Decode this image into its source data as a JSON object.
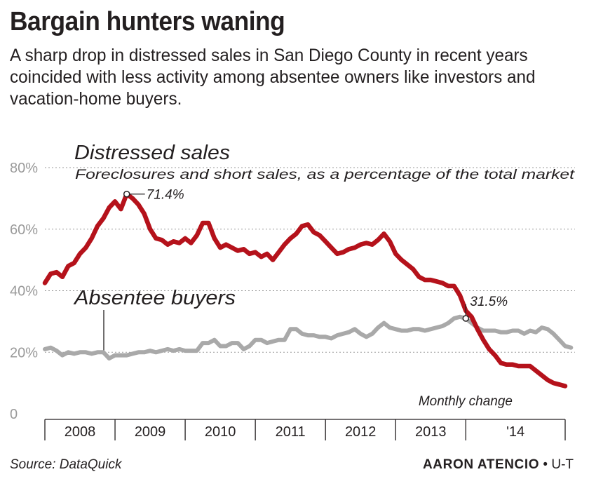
{
  "header": {
    "title": "Bargain hunters waning",
    "subtitle": "A sharp drop in distressed sales in San Diego County in recent years coincided with less activity among absentee owners like investors and vacation-home buyers."
  },
  "footer": {
    "source": "Source: DataQuick",
    "credit_name": "AARON ATENCIO",
    "credit_sep": "•",
    "credit_org": "U-T"
  },
  "chart_data": {
    "type": "line",
    "title": "Bargain hunters waning",
    "subtitle": "A sharp drop in distressed sales in San Diego County in recent years coincided with less activity among absentee owners like investors and vacation-home buyers.",
    "xlabel": "",
    "ylabel": "",
    "ylim": [
      0,
      80
    ],
    "y_ticks": [
      0,
      20,
      40,
      60,
      80
    ],
    "y_tick_labels": [
      "0",
      "20%",
      "40%",
      "60%",
      "80%"
    ],
    "x_year_labels": [
      "2008",
      "2009",
      "2010",
      "2011",
      "2012",
      "2013",
      "'14"
    ],
    "x_start": "2008-01",
    "x_end": "2014-05",
    "grid": true,
    "colors": {
      "distressed": "#b5121b",
      "absentee": "#a9a9a9",
      "grid": "#999999",
      "text": "#231f20"
    },
    "series": [
      {
        "name": "Distressed sales",
        "description": "Foreclosures and short sales, as a percentage of the total market",
        "color": "#b5121b",
        "values": [
          42.5,
          45.5,
          46,
          44.5,
          48,
          49,
          52,
          54,
          57,
          61,
          63.5,
          67,
          69,
          66.5,
          71.4,
          70,
          68,
          65,
          60,
          57,
          56.5,
          55,
          56,
          55.5,
          57,
          55.5,
          58,
          62,
          62,
          57,
          54,
          55,
          54,
          53,
          53.5,
          52,
          52.5,
          51,
          52,
          50,
          52.5,
          55,
          57,
          58.5,
          61,
          61.5,
          59,
          58,
          56,
          54,
          52,
          52.5,
          53.5,
          54,
          55,
          55.5,
          55,
          56.5,
          58.5,
          56,
          52,
          50,
          48.5,
          47,
          44.5,
          43.5,
          43.5,
          43,
          42.5,
          41.5,
          41.5,
          38.5,
          33.5,
          31.5,
          27.5,
          24,
          21,
          19,
          16.5,
          16,
          16,
          15.5,
          15.5,
          15.5,
          14,
          12.5,
          11,
          10,
          9.5,
          9
        ],
        "annotations": [
          {
            "index": 14,
            "label": "71.4%"
          }
        ]
      },
      {
        "name": "Absentee buyers",
        "color": "#a9a9a9",
        "values": [
          21,
          21.5,
          20.5,
          19,
          20,
          19.5,
          20,
          20,
          19.5,
          20,
          20,
          18,
          19,
          19,
          19,
          19.5,
          20,
          20,
          20.5,
          20,
          20.5,
          21,
          20.5,
          21,
          20.5,
          20.5,
          20.5,
          23,
          23,
          24,
          22,
          22,
          23,
          23,
          21,
          22,
          24,
          24,
          23,
          23.5,
          24,
          24,
          27.5,
          27.5,
          26,
          25.5,
          25.5,
          25,
          25,
          24.5,
          25.5,
          26,
          26.5,
          27.5,
          26,
          25,
          26,
          28,
          29.5,
          28,
          27.5,
          27,
          27,
          27.5,
          27.5,
          27,
          27.5,
          28,
          28.5,
          29.5,
          31,
          31.5,
          31,
          29.5,
          28,
          27,
          27,
          27,
          26.5,
          26.5,
          27,
          27,
          26,
          27,
          26.5,
          28,
          27.5,
          26,
          24,
          22,
          21.5
        ],
        "annotations": [
          {
            "index": 72,
            "label": "31.5%"
          }
        ]
      }
    ],
    "annotation_text": "Monthly change"
  }
}
